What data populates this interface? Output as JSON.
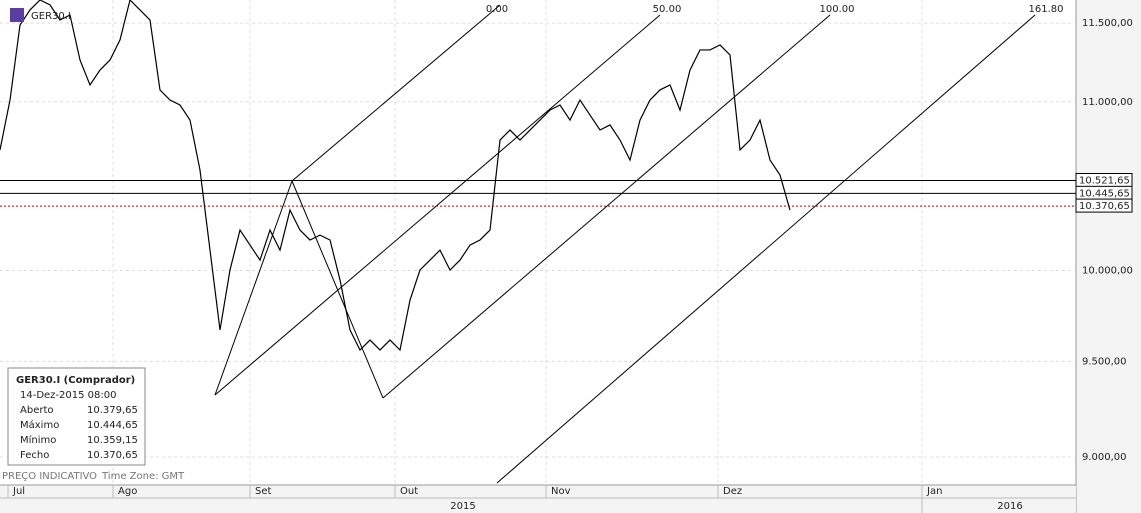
{
  "chart_data": {
    "type": "line",
    "symbol": "GER30.I",
    "log": true,
    "grid": true,
    "color": "#000000",
    "xlim": [
      0,
      107.5
    ],
    "ylim": [
      8859,
      11651
    ],
    "yticks": [
      {
        "value": 9000,
        "label": "9.000,00"
      },
      {
        "value": 9500,
        "label": "9.500,00"
      },
      {
        "value": 10000,
        "label": "10.000,00"
      },
      {
        "value": 11000,
        "label": "11.000,00"
      },
      {
        "value": 11500,
        "label": "11.500,00"
      }
    ],
    "xticks": [
      {
        "value": 0.8,
        "label": "Jul"
      },
      {
        "value": 11.3,
        "label": "Ago"
      },
      {
        "value": 25,
        "label": "Set"
      },
      {
        "value": 39.5,
        "label": "Out"
      },
      {
        "value": 54.6,
        "label": "Nov"
      },
      {
        "value": 71.8,
        "label": "Dez"
      },
      {
        "value": 92.2,
        "label": "Jan"
      }
    ],
    "years": [
      {
        "value": 46.3,
        "label": "2015"
      },
      {
        "value": 101,
        "label": "2016"
      }
    ],
    "year_divider": 92.2,
    "series": [
      {
        "name": "GER30.I",
        "color": "#000000",
        "values": [
          10705,
          11011,
          11487,
          11586,
          11651,
          11619,
          11520,
          11553,
          11263,
          11105,
          11199,
          11263,
          11391,
          11651,
          11586,
          11520,
          11074,
          11011,
          10980,
          10887,
          10584,
          10116,
          9670,
          10003,
          10231,
          10145,
          10059,
          10231,
          10116,
          10347,
          10231,
          10174,
          10202,
          10174,
          9947,
          9670,
          9561,
          9615,
          9561,
          9615,
          9561,
          9834,
          10003,
          10059,
          10116,
          10003,
          10059,
          10145,
          10174,
          10231,
          10765,
          10826,
          10765,
          10826,
          10887,
          10949,
          10980,
          10887,
          11011,
          10918,
          10826,
          10857,
          10765,
          10644,
          10887,
          11011,
          11074,
          11105,
          10949,
          11199,
          11327,
          11327,
          11359,
          11295,
          10705,
          10765,
          10887,
          10644,
          10554,
          10347
        ]
      }
    ],
    "levels": {
      "values": [
        10521.65,
        10445.65,
        10370.65
      ],
      "value_labels": [
        "10.521,65",
        "10.445,65",
        "10.370,65"
      ],
      "colors": [
        "#000000",
        "#000000",
        "#c00000"
      ]
    },
    "fib_labels": [
      "0.00",
      "50.00",
      "100.00",
      "161.80"
    ],
    "info": {
      "title": "GER30.I (Comprador)",
      "date": "14-Dez-2015 08:00",
      "rows": [
        [
          "Aberto",
          "10.379,65"
        ],
        [
          "Máximo",
          "10.444,65"
        ],
        [
          "Mínimo",
          "10.359,15"
        ],
        [
          "Fecho",
          "10.370,65"
        ]
      ]
    },
    "footer": [
      "PREÇO INDICATIVO",
      "Time Zone: GMT"
    ]
  }
}
